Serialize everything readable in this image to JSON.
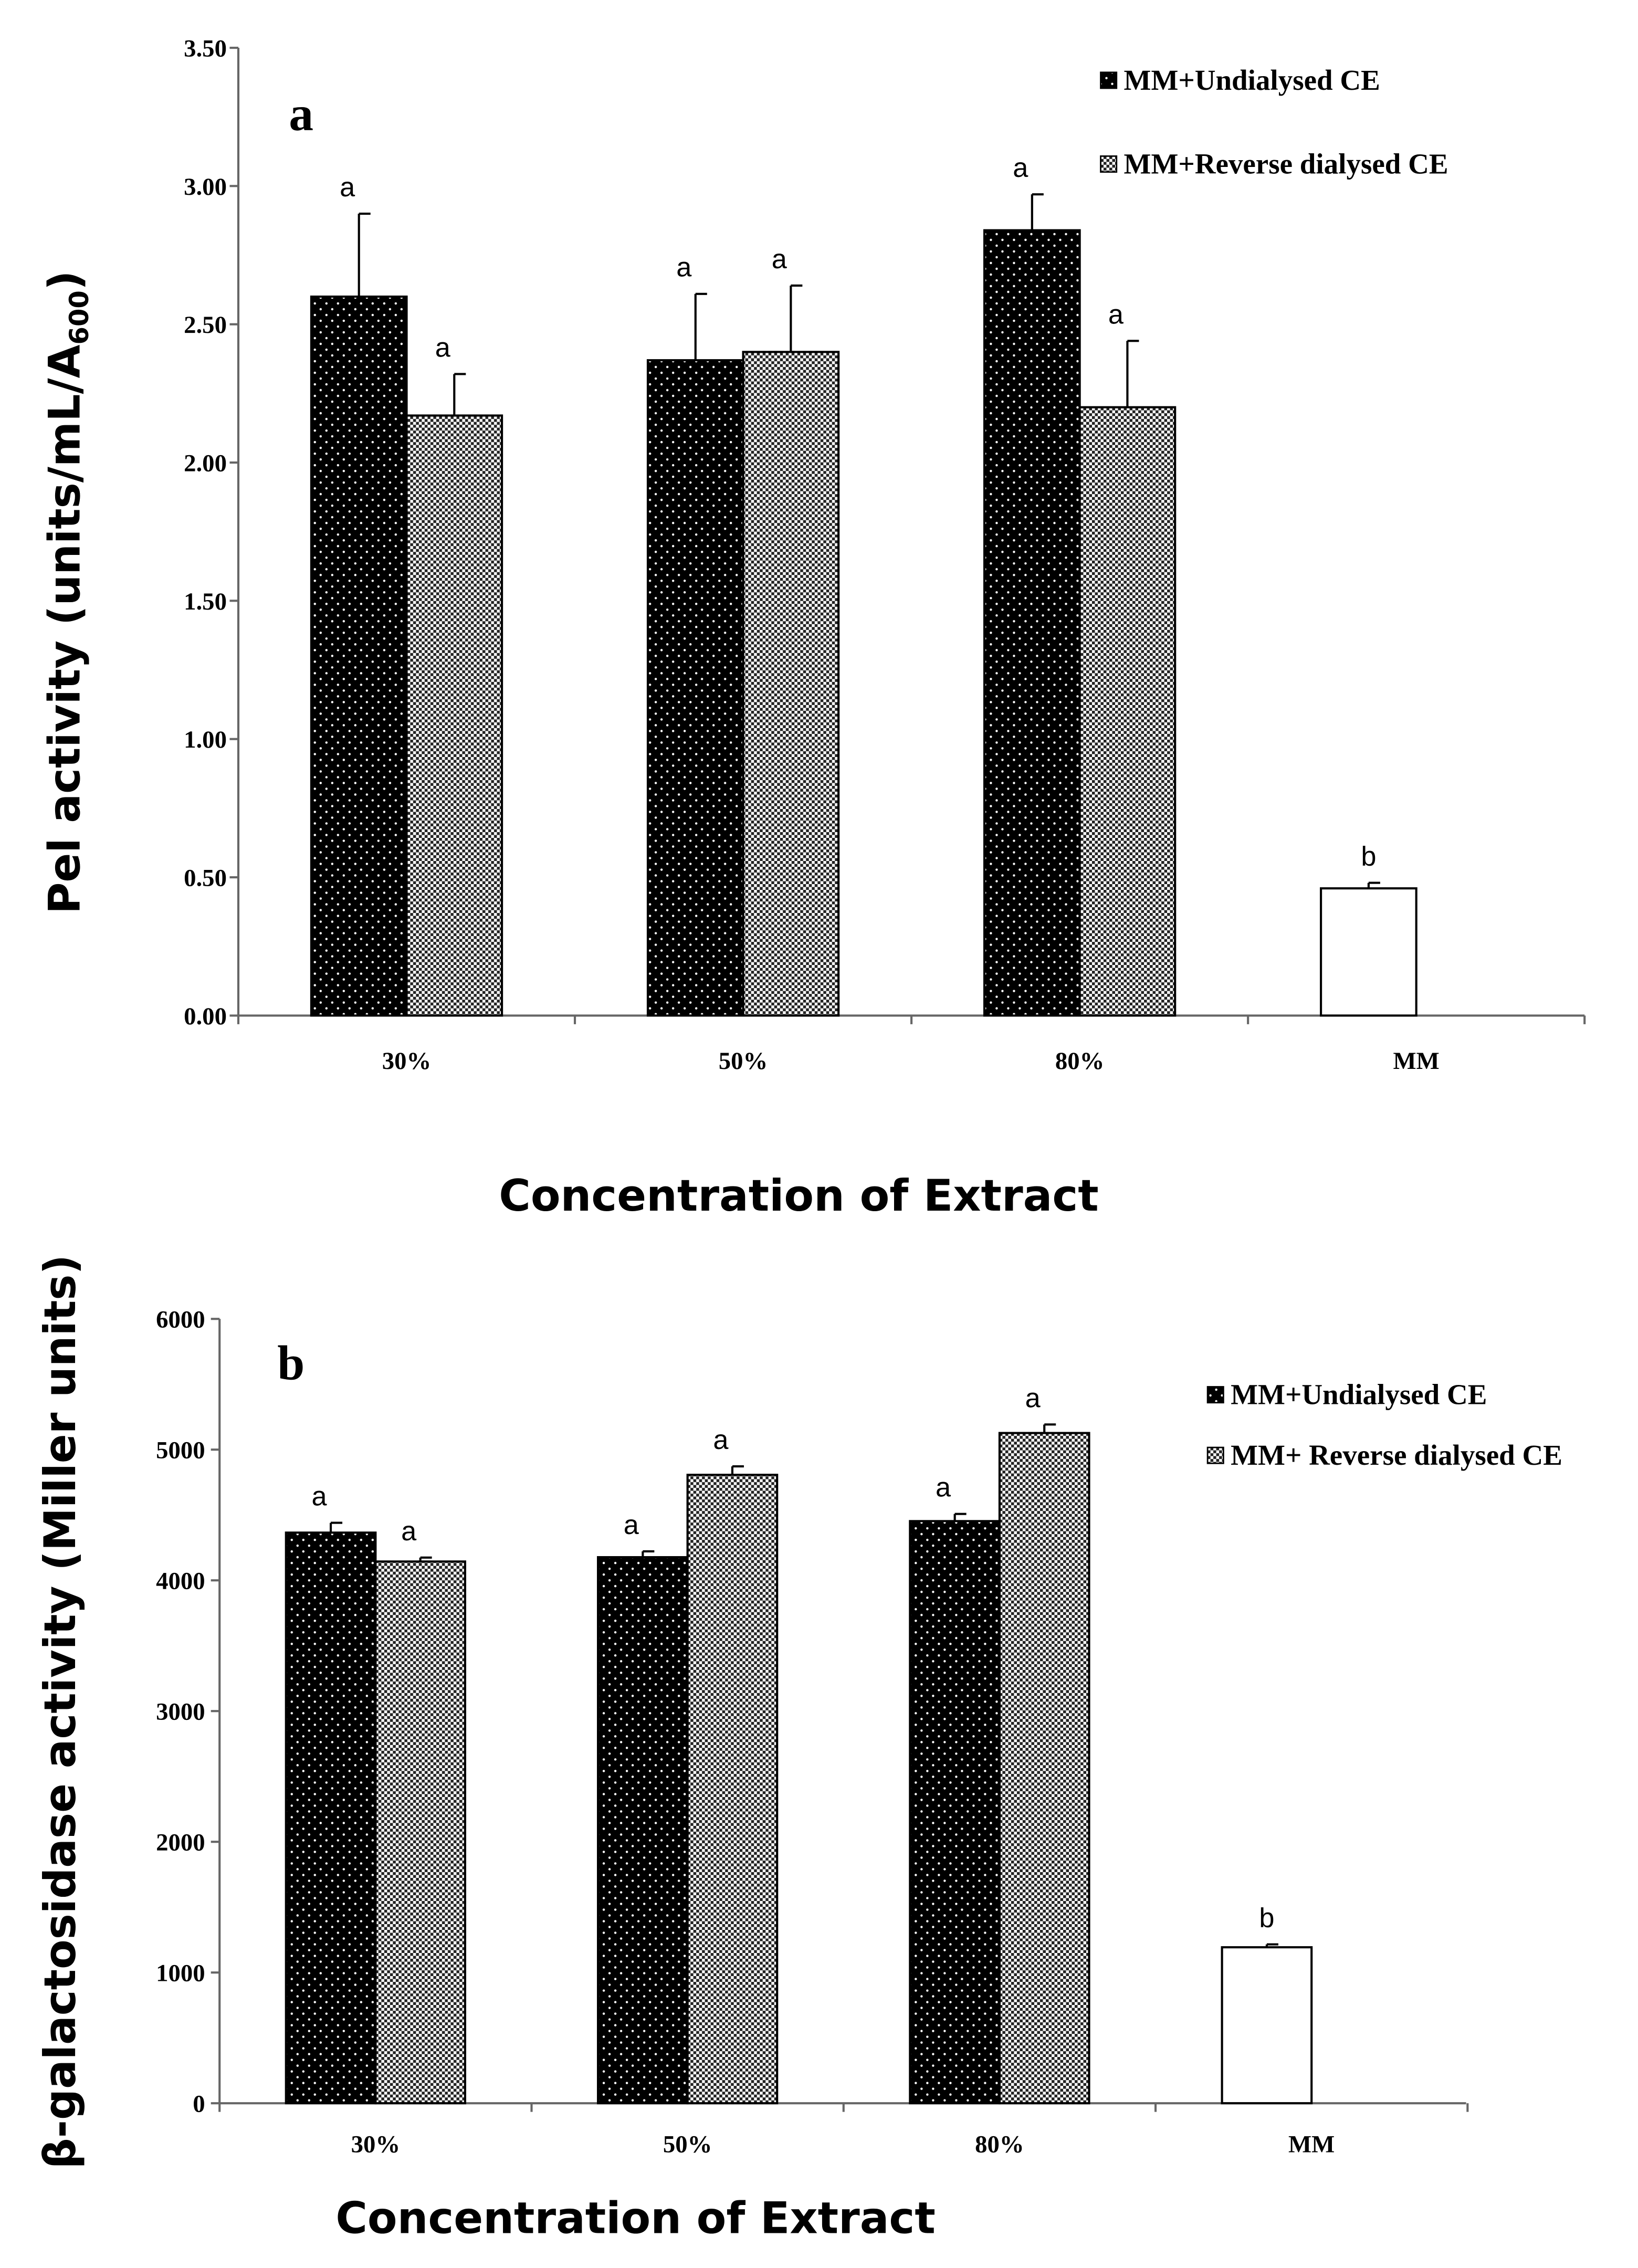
{
  "chart_data": [
    {
      "type": "bar",
      "panel": "a",
      "title": "",
      "categories": [
        "30%",
        "50%",
        "80%",
        "MM"
      ],
      "xlabel": "Concentration of Extract",
      "ylabel": "Pel activity (units/mL/A",
      "ylabel_sub": "600",
      "ylabel_end": ")",
      "ylim": [
        0,
        3.5
      ],
      "yticks": [
        "0.00",
        "0.50",
        "1.00",
        "1.50",
        "2.00",
        "2.50",
        "3.00",
        "3.50"
      ],
      "ytick_values": [
        0,
        0.5,
        1,
        1.5,
        2,
        2.5,
        3,
        3.5
      ],
      "legend_position": "top-right",
      "series": [
        {
          "name": "MM+Undialysed CE",
          "values": [
            2.6,
            2.37,
            2.84,
            null
          ],
          "errors": [
            0.3,
            0.24,
            0.13,
            null
          ],
          "sig": [
            "",
            "a",
            "a",
            null
          ],
          "pattern": "dots"
        },
        {
          "name": "MM+Reverse dialysed CE",
          "values": [
            2.17,
            2.4,
            2.2,
            null
          ],
          "errors": [
            0.15,
            0.24,
            0.24,
            null
          ],
          "sig": [
            "a",
            "a",
            "a",
            null
          ],
          "pattern": "check"
        },
        {
          "name": "MM",
          "values": [
            null,
            null,
            null,
            0.46
          ],
          "errors": [
            null,
            null,
            null,
            0.02
          ],
          "sig": [
            null,
            null,
            null,
            "b"
          ],
          "pattern": "white"
        }
      ],
      "sig_first": "a"
    },
    {
      "type": "bar",
      "panel": "b",
      "title": "",
      "categories": [
        "30%",
        "50%",
        "80%",
        "MM"
      ],
      "xlabel": "Concentration of Extract",
      "ylabel": "β-galactosidase activity (Miller units)",
      "ylim": [
        0,
        6000
      ],
      "yticks": [
        "0",
        "1000",
        "2000",
        "3000",
        "4000",
        "5000",
        "6000"
      ],
      "ytick_values": [
        0,
        1000,
        2000,
        3000,
        4000,
        5000,
        6000
      ],
      "legend_position": "top-right",
      "series": [
        {
          "name": "MM+Undialysed CE",
          "values": [
            4365,
            4177,
            4453,
            null
          ],
          "errors": [
            75,
            45,
            55,
            null
          ],
          "sig": [
            "a",
            "a",
            "a",
            null
          ],
          "pattern": "dots"
        },
        {
          "name": "MM+ Reverse dialysed CE",
          "values": [
            4144,
            4807,
            5127,
            null
          ],
          "errors": [
            30,
            65,
            65,
            null
          ],
          "sig": [
            "a",
            "a",
            "a",
            null
          ],
          "pattern": "check"
        },
        {
          "name": "MM",
          "values": [
            null,
            null,
            null,
            1193
          ],
          "errors": [
            null,
            null,
            null,
            22
          ],
          "sig": [
            null,
            null,
            null,
            "b"
          ],
          "pattern": "white"
        }
      ]
    }
  ],
  "colors": {
    "bar_dark": "#000000",
    "bar_check": "#8a8a8a",
    "bar_white": "#ffffff"
  }
}
